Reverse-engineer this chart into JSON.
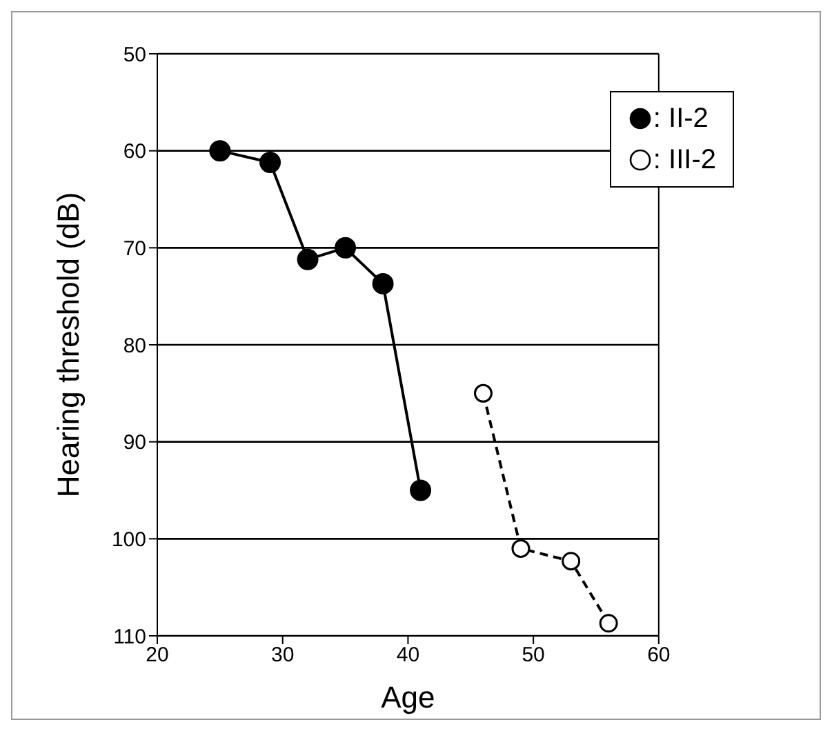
{
  "chart_data": {
    "type": "line",
    "xlabel": "Age",
    "ylabel": "Hearing threshold (dB)",
    "xlim": [
      20,
      60
    ],
    "xticks": [
      20,
      30,
      40,
      50,
      60
    ],
    "ylim": [
      110,
      50
    ],
    "yticks": [
      50,
      60,
      70,
      80,
      90,
      100,
      110
    ],
    "grid": "y",
    "legend": "top right",
    "marker": "circle",
    "series": [
      {
        "name": ": II-2",
        "color": "#000000",
        "line_style": "solid",
        "x": [
          25,
          29,
          32,
          35,
          38,
          41
        ],
        "values": [
          60,
          61.2,
          71.2,
          70,
          73.7,
          95
        ]
      },
      {
        "name": ": III-2",
        "color": "#000000",
        "line_style": "dashed",
        "x": [
          46,
          49,
          53,
          56
        ],
        "values": [
          85,
          101,
          102.3,
          108.7
        ]
      }
    ]
  }
}
